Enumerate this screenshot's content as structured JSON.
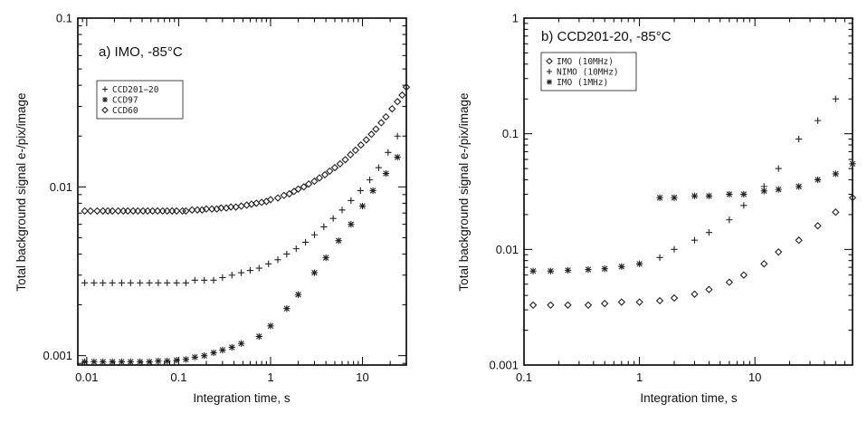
{
  "chart_data": [
    {
      "type": "scatter",
      "title": "a) IMO, -85°C",
      "xlabel": "Integration time, s",
      "ylabel": "Total background signal e-/pix/image",
      "xscale": "log",
      "yscale": "log",
      "xlim": [
        0.008,
        30
      ],
      "ylim": [
        0.00088,
        0.1
      ],
      "xticks": [
        "0.01",
        "0.1",
        "1",
        "10"
      ],
      "yticks": [
        "0.1",
        "0.01",
        "0.001"
      ],
      "legend_position": "top-left",
      "series": [
        {
          "name": "CCD201−20",
          "marker": "plus",
          "x": [
            0.0095,
            0.012,
            0.015,
            0.019,
            0.024,
            0.03,
            0.038,
            0.048,
            0.06,
            0.075,
            0.095,
            0.12,
            0.15,
            0.19,
            0.24,
            0.3,
            0.38,
            0.48,
            0.6,
            0.75,
            0.95,
            1.2,
            1.5,
            1.9,
            2.4,
            3.0,
            3.8,
            4.8,
            6.0,
            7.5,
            9.5,
            12,
            15,
            19,
            24
          ],
          "y": [
            0.0027,
            0.0027,
            0.0027,
            0.0027,
            0.0027,
            0.0027,
            0.0027,
            0.0027,
            0.0027,
            0.0027,
            0.0027,
            0.0027,
            0.0028,
            0.0028,
            0.0028,
            0.0029,
            0.003,
            0.0031,
            0.0032,
            0.0033,
            0.0035,
            0.0037,
            0.004,
            0.0043,
            0.0047,
            0.0052,
            0.0058,
            0.0065,
            0.0073,
            0.0083,
            0.0095,
            0.011,
            0.013,
            0.016,
            0.02
          ]
        },
        {
          "name": "CCD97",
          "marker": "asterisk",
          "x": [
            0.0095,
            0.012,
            0.015,
            0.019,
            0.024,
            0.03,
            0.038,
            0.048,
            0.06,
            0.075,
            0.095,
            0.12,
            0.15,
            0.19,
            0.24,
            0.3,
            0.38,
            0.48,
            0.75,
            1.0,
            1.5,
            2.0,
            3.0,
            4.0,
            5.5,
            7.5,
            10,
            13,
            18,
            24
          ],
          "y": [
            0.00092,
            0.00092,
            0.00092,
            0.00092,
            0.00092,
            0.00092,
            0.00092,
            0.00092,
            0.00093,
            0.00093,
            0.00094,
            0.00095,
            0.00098,
            0.001,
            0.00104,
            0.00108,
            0.00112,
            0.00118,
            0.0013,
            0.0015,
            0.0019,
            0.0023,
            0.0031,
            0.0038,
            0.0048,
            0.006,
            0.0077,
            0.0095,
            0.012,
            0.015
          ]
        },
        {
          "name": "CCD60",
          "marker": "diamond",
          "x": [
            0.0095,
            0.011,
            0.013,
            0.015,
            0.017,
            0.019,
            0.022,
            0.025,
            0.028,
            0.032,
            0.036,
            0.041,
            0.046,
            0.052,
            0.059,
            0.067,
            0.075,
            0.085,
            0.095,
            0.11,
            0.12,
            0.14,
            0.16,
            0.18,
            0.2,
            0.23,
            0.26,
            0.29,
            0.33,
            0.37,
            0.42,
            0.48,
            0.55,
            0.62,
            0.7,
            0.8,
            0.9,
            1.0,
            1.2,
            1.4,
            1.6,
            1.8,
            2.0,
            2.3,
            2.6,
            3.0,
            3.4,
            3.9,
            4.4,
            5.0,
            5.7,
            6.5,
            7.4,
            8.4,
            9.6,
            11,
            12.5,
            14,
            16,
            18,
            21,
            24,
            27,
            30
          ],
          "y": [
            0.0072,
            0.0072,
            0.0072,
            0.0072,
            0.0072,
            0.0072,
            0.0072,
            0.0072,
            0.0072,
            0.0072,
            0.0072,
            0.0072,
            0.0072,
            0.0072,
            0.0072,
            0.0072,
            0.0072,
            0.0072,
            0.0072,
            0.0072,
            0.0072,
            0.0073,
            0.0073,
            0.0073,
            0.0074,
            0.0074,
            0.0074,
            0.0075,
            0.0075,
            0.0076,
            0.0076,
            0.0077,
            0.0078,
            0.0079,
            0.008,
            0.0081,
            0.0082,
            0.0084,
            0.0086,
            0.0089,
            0.0091,
            0.0094,
            0.0097,
            0.01,
            0.0104,
            0.0108,
            0.0113,
            0.0118,
            0.0124,
            0.013,
            0.0137,
            0.0145,
            0.0155,
            0.0165,
            0.0177,
            0.019,
            0.0205,
            0.022,
            0.024,
            0.026,
            0.029,
            0.032,
            0.035,
            0.039
          ]
        }
      ]
    },
    {
      "type": "scatter",
      "title": "b) CCD201-20, -85°C",
      "xlabel": "Integration time, s",
      "ylabel": "Total background signal e-/pix/image",
      "xscale": "log",
      "yscale": "log",
      "xlim": [
        0.1,
        70
      ],
      "ylim": [
        0.001,
        1
      ],
      "xticks": [
        "0.1",
        "1",
        "10"
      ],
      "yticks": [
        "1",
        "0.1",
        "0.01",
        "0.001"
      ],
      "legend_position": "top-left",
      "series": [
        {
          "name": "IMO (10MHz)",
          "marker": "diamond",
          "x": [
            0.12,
            0.17,
            0.24,
            0.36,
            0.5,
            0.7,
            1.0,
            1.5,
            2.0,
            3.0,
            4.0,
            6.0,
            8.0,
            12,
            16,
            24,
            35,
            50,
            70
          ],
          "y": [
            0.0033,
            0.0033,
            0.0033,
            0.0033,
            0.0034,
            0.0035,
            0.0035,
            0.0036,
            0.0038,
            0.0041,
            0.0045,
            0.0052,
            0.006,
            0.0075,
            0.0095,
            0.012,
            0.016,
            0.021,
            0.028
          ]
        },
        {
          "name": "NIMO (10MHz)",
          "marker": "plus",
          "x": [
            1.5,
            2.0,
            3.0,
            4.0,
            6.0,
            8.0,
            12,
            16,
            24,
            35,
            50
          ],
          "y": [
            0.0085,
            0.01,
            0.012,
            0.014,
            0.018,
            0.024,
            0.035,
            0.05,
            0.09,
            0.13,
            0.2
          ]
        },
        {
          "name": "IMO (1MHz)",
          "marker": "asterisk",
          "x": [
            0.12,
            0.17,
            0.24,
            0.36,
            0.5,
            0.7,
            1.0,
            1.5,
            2.0,
            3.0,
            4.0,
            6.0,
            8.0,
            12,
            16,
            24,
            35,
            50,
            70
          ],
          "y": [
            0.0065,
            0.0065,
            0.0066,
            0.0067,
            0.0068,
            0.0071,
            0.0075,
            0.028,
            0.028,
            0.029,
            0.029,
            0.03,
            0.03,
            0.032,
            0.033,
            0.035,
            0.04,
            0.045,
            0.055
          ]
        }
      ]
    }
  ]
}
